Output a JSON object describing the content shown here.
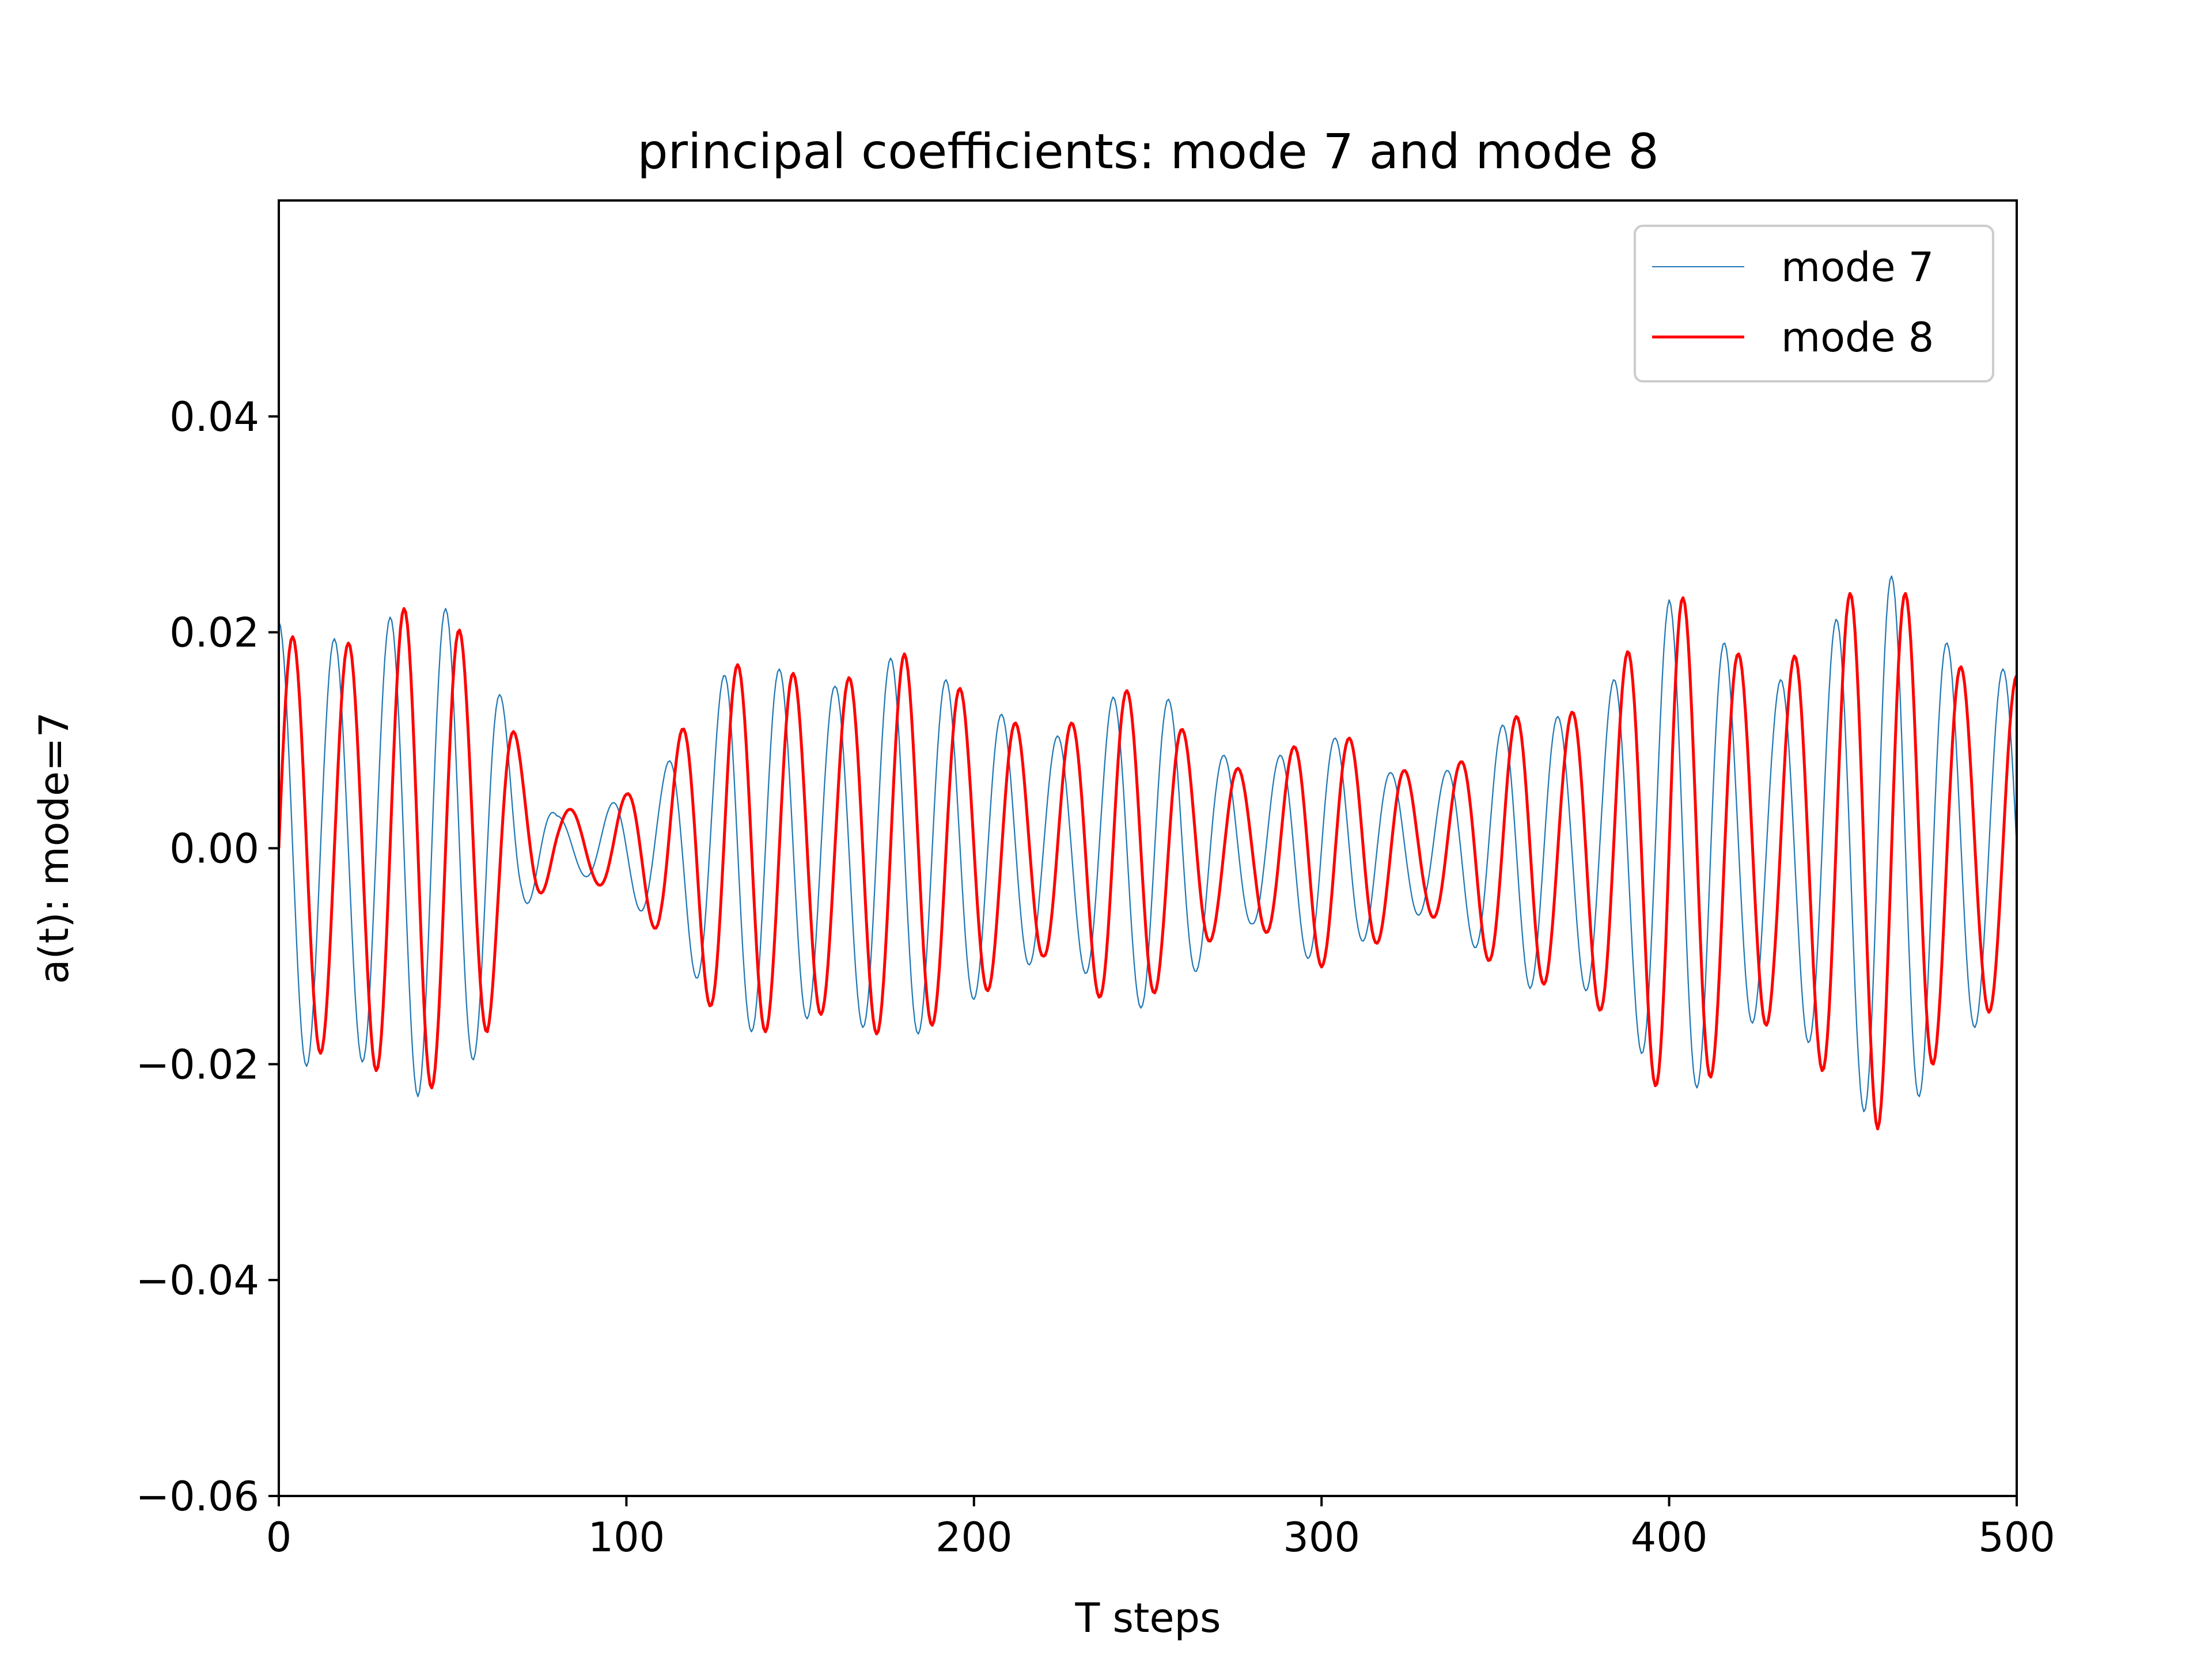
{
  "chart_data": {
    "type": "line",
    "title": "principal coefficients: mode 7 and mode 8",
    "xlabel": "T steps",
    "ylabel": "a(t): mode=7",
    "xlim": [
      0,
      500
    ],
    "ylim": [
      -0.06,
      0.06
    ],
    "xticks": [
      0,
      100,
      200,
      300,
      400,
      500
    ],
    "xtick_labels": [
      "0",
      "100",
      "200",
      "300",
      "400",
      "500"
    ],
    "yticks": [
      -0.06,
      -0.04,
      -0.02,
      0.0,
      0.02,
      0.04
    ],
    "ytick_labels": [
      "−0.06",
      "−0.04",
      "−0.02",
      "0.00",
      "0.02",
      "0.04"
    ],
    "grid": false,
    "legend": {
      "position": "top-right",
      "entries": [
        "mode 7",
        "mode 8"
      ]
    },
    "series": [
      {
        "name": "mode 7",
        "color": "#1f77b4",
        "period": 16,
        "envelope": {
          "t": [
            0,
            10,
            20,
            30,
            40,
            50,
            60,
            70,
            80,
            90,
            100,
            110,
            120,
            130,
            140,
            150,
            160,
            170,
            180,
            190,
            200,
            210,
            220,
            230,
            240,
            250,
            260,
            270,
            280,
            290,
            300,
            310,
            320,
            330,
            340,
            350,
            360,
            370,
            380,
            390,
            400,
            410,
            420,
            430,
            440,
            450,
            460,
            470,
            480,
            490,
            500
          ],
          "amplitude": [
            0.021,
            0.02,
            0.019,
            0.021,
            0.023,
            0.022,
            0.018,
            0.007,
            0.002,
            0.003,
            0.005,
            0.007,
            0.012,
            0.017,
            0.017,
            0.016,
            0.015,
            0.017,
            0.018,
            0.016,
            0.014,
            0.012,
            0.01,
            0.011,
            0.014,
            0.015,
            0.013,
            0.009,
            0.007,
            0.009,
            0.011,
            0.009,
            0.007,
            0.006,
            0.008,
            0.011,
            0.013,
            0.012,
            0.014,
            0.018,
            0.023,
            0.022,
            0.017,
            0.015,
            0.018,
            0.022,
            0.026,
            0.024,
            0.019,
            0.016,
            0.017
          ],
          "offset": [
            0,
            0,
            0,
            0,
            0,
            0,
            0,
            0.001,
            0.001,
            0,
            0,
            0,
            0,
            0,
            0,
            0,
            0,
            0,
            0,
            0,
            0,
            0,
            0,
            0,
            0,
            0,
            0,
            0,
            0,
            0,
            0,
            0,
            0,
            0,
            0,
            0,
            0,
            0,
            0,
            0,
            0,
            0,
            0,
            0,
            0,
            0,
            0,
            0,
            0,
            0,
            0
          ]
        }
      },
      {
        "name": "mode 8",
        "color": "#ff0000",
        "period": 16,
        "phase_lag": 4,
        "envelope": {
          "t": [
            0,
            10,
            20,
            30,
            40,
            50,
            60,
            70,
            80,
            90,
            100,
            110,
            120,
            130,
            140,
            150,
            160,
            170,
            180,
            190,
            200,
            210,
            220,
            230,
            240,
            250,
            260,
            270,
            280,
            290,
            300,
            310,
            320,
            330,
            340,
            350,
            360,
            370,
            380,
            390,
            400,
            410,
            420,
            430,
            440,
            450,
            460,
            470,
            480,
            490,
            500
          ],
          "amplitude": [
            0.02,
            0.019,
            0.019,
            0.021,
            0.023,
            0.021,
            0.017,
            0.008,
            0.003,
            0.003,
            0.005,
            0.008,
            0.013,
            0.017,
            0.017,
            0.016,
            0.015,
            0.017,
            0.018,
            0.016,
            0.014,
            0.012,
            0.01,
            0.012,
            0.015,
            0.014,
            0.011,
            0.008,
            0.007,
            0.009,
            0.011,
            0.01,
            0.008,
            0.006,
            0.008,
            0.011,
            0.013,
            0.012,
            0.015,
            0.019,
            0.024,
            0.022,
            0.018,
            0.016,
            0.019,
            0.023,
            0.026,
            0.023,
            0.018,
            0.015,
            0.016
          ],
          "offset": [
            0,
            0,
            0,
            0,
            0,
            0,
            0,
            0.001,
            0.001,
            0,
            0,
            0,
            0,
            0,
            0,
            0,
            0,
            0,
            0,
            0,
            0,
            0,
            0,
            0,
            0,
            0,
            0,
            0,
            0,
            0,
            0,
            0,
            0,
            0,
            0,
            0,
            0,
            0,
            0,
            0,
            0,
            0,
            0,
            0,
            0,
            0,
            0,
            0,
            0,
            0,
            0
          ]
        }
      }
    ]
  }
}
